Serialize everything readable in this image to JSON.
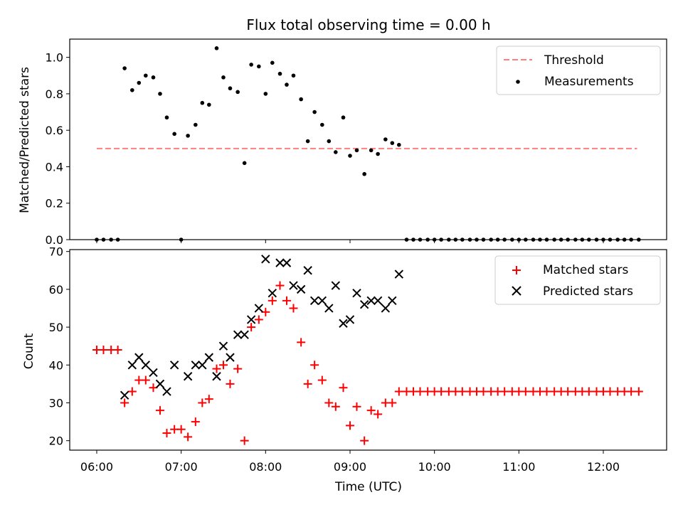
{
  "chart_data": [
    {
      "type": "line+scatter",
      "title": "Flux total observing time = 0.00 h",
      "ylabel": "Matched/Predicted stars",
      "xlim": [
        5.68,
        12.75
      ],
      "ylim": [
        0,
        1.1
      ],
      "yticks": [
        0.0,
        0.2,
        0.4,
        0.6,
        0.8,
        1.0
      ],
      "ytick_labels": [
        "0.0",
        "0.2",
        "0.4",
        "0.6",
        "0.8",
        "1.0"
      ],
      "legend_position": "top-right",
      "series": [
        {
          "name": "Threshold",
          "kind": "dashed-line",
          "color": "#ff7f7f",
          "x": [
            6.0,
            12.4
          ],
          "y": [
            0.5,
            0.5
          ]
        },
        {
          "name": "Measurements",
          "kind": "scatter-dot",
          "color": "#000000",
          "x": [
            6.0,
            6.08,
            6.17,
            6.25,
            6.33,
            6.42,
            6.5,
            6.58,
            6.67,
            6.75,
            6.83,
            6.92,
            7.0,
            7.08,
            7.17,
            7.25,
            7.33,
            7.42,
            7.5,
            7.58,
            7.67,
            7.75,
            7.83,
            7.92,
            8.0,
            8.08,
            8.17,
            8.25,
            8.33,
            8.42,
            8.5,
            8.58,
            8.67,
            8.75,
            8.83,
            8.92,
            9.0,
            9.08,
            9.17,
            9.25,
            9.33,
            9.42,
            9.5,
            9.58,
            9.67,
            9.75,
            9.83,
            9.92,
            10.0,
            10.08,
            10.17,
            10.25,
            10.33,
            10.42,
            10.5,
            10.58,
            10.67,
            10.75,
            10.83,
            10.92,
            11.0,
            11.08,
            11.17,
            11.25,
            11.33,
            11.42,
            11.5,
            11.58,
            11.67,
            11.75,
            11.83,
            11.92,
            12.0,
            12.08,
            12.17,
            12.25,
            12.33,
            12.42
          ],
          "y": [
            0.0,
            0.0,
            0.0,
            0.0,
            0.94,
            0.82,
            0.86,
            0.9,
            0.89,
            0.8,
            0.67,
            0.58,
            0.0,
            0.57,
            0.63,
            0.75,
            0.74,
            1.05,
            0.89,
            0.83,
            0.81,
            0.42,
            0.96,
            0.95,
            0.8,
            0.97,
            0.91,
            0.85,
            0.9,
            0.77,
            0.54,
            0.7,
            0.63,
            0.54,
            0.48,
            0.67,
            0.46,
            0.49,
            0.36,
            0.49,
            0.47,
            0.55,
            0.53,
            0.52,
            0.0,
            0.0,
            0.0,
            0.0,
            0.0,
            0.0,
            0.0,
            0.0,
            0.0,
            0.0,
            0.0,
            0.0,
            0.0,
            0.0,
            0.0,
            0.0,
            0.0,
            0.0,
            0.0,
            0.0,
            0.0,
            0.0,
            0.0,
            0.0,
            0.0,
            0.0,
            0.0,
            0.0,
            0.0,
            0.0,
            0.0,
            0.0,
            0.0,
            0.0
          ]
        }
      ]
    },
    {
      "type": "scatter",
      "xlabel": "Time (UTC)",
      "ylabel": "Count",
      "xlim": [
        5.68,
        12.75
      ],
      "ylim": [
        17.5,
        70.5
      ],
      "xticks": [
        6,
        7,
        8,
        9,
        10,
        11,
        12
      ],
      "xtick_labels": [
        "06:00",
        "07:00",
        "08:00",
        "09:00",
        "10:00",
        "11:00",
        "12:00"
      ],
      "yticks": [
        20,
        30,
        40,
        50,
        60,
        70
      ],
      "ytick_labels": [
        "20",
        "30",
        "40",
        "50",
        "60",
        "70"
      ],
      "legend_position": "top-right",
      "series": [
        {
          "name": "Matched stars",
          "marker": "plus",
          "color": "#ff0000",
          "x": [
            6.0,
            6.08,
            6.17,
            6.25,
            6.33,
            6.42,
            6.5,
            6.58,
            6.67,
            6.75,
            6.83,
            6.92,
            7.0,
            7.08,
            7.17,
            7.25,
            7.33,
            7.42,
            7.5,
            7.58,
            7.67,
            7.75,
            7.83,
            7.92,
            8.0,
            8.08,
            8.17,
            8.25,
            8.33,
            8.42,
            8.5,
            8.58,
            8.67,
            8.75,
            8.83,
            8.92,
            9.0,
            9.08,
            9.17,
            9.25,
            9.33,
            9.42,
            9.5,
            9.58,
            9.67,
            9.75,
            9.83,
            9.92,
            10.0,
            10.08,
            10.17,
            10.25,
            10.33,
            10.42,
            10.5,
            10.58,
            10.67,
            10.75,
            10.83,
            10.92,
            11.0,
            11.08,
            11.17,
            11.25,
            11.33,
            11.42,
            11.5,
            11.58,
            11.67,
            11.75,
            11.83,
            11.92,
            12.0,
            12.08,
            12.17,
            12.25,
            12.33,
            12.42
          ],
          "y": [
            44,
            44,
            44,
            44,
            30,
            33,
            36,
            36,
            34,
            28,
            22,
            23,
            23,
            21,
            25,
            30,
            31,
            39,
            40,
            35,
            39,
            20,
            50,
            52,
            54,
            57,
            61,
            57,
            55,
            46,
            35,
            40,
            36,
            30,
            29,
            34,
            24,
            29,
            20,
            28,
            27,
            30,
            30,
            33,
            33,
            33,
            33,
            33,
            33,
            33,
            33,
            33,
            33,
            33,
            33,
            33,
            33,
            33,
            33,
            33,
            33,
            33,
            33,
            33,
            33,
            33,
            33,
            33,
            33,
            33,
            33,
            33,
            33,
            33,
            33,
            33,
            33,
            33
          ]
        },
        {
          "name": "Predicted stars",
          "marker": "x",
          "color": "#000000",
          "x": [
            6.33,
            6.42,
            6.5,
            6.58,
            6.67,
            6.75,
            6.83,
            6.92,
            7.08,
            7.17,
            7.25,
            7.33,
            7.42,
            7.5,
            7.58,
            7.67,
            7.75,
            7.83,
            7.92,
            8.0,
            8.08,
            8.17,
            8.25,
            8.33,
            8.42,
            8.5,
            8.58,
            8.67,
            8.75,
            8.83,
            8.92,
            9.0,
            9.08,
            9.17,
            9.25,
            9.33,
            9.42,
            9.5,
            9.58
          ],
          "y": [
            32,
            40,
            42,
            40,
            38,
            35,
            33,
            40,
            37,
            40,
            40,
            42,
            37,
            45,
            42,
            48,
            48,
            52,
            55,
            68,
            59,
            67,
            67,
            61,
            60,
            65,
            57,
            57,
            55,
            61,
            51,
            52,
            59,
            56,
            57,
            57,
            55,
            57,
            64
          ]
        }
      ]
    }
  ]
}
